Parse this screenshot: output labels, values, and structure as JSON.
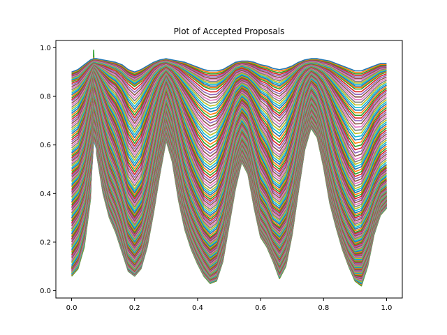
{
  "chart_data": {
    "type": "line",
    "title": "Plot of Accepted Proposals",
    "xlabel": "",
    "ylabel": "",
    "xlim": [
      -0.05,
      1.05
    ],
    "ylim": [
      -0.03,
      1.03
    ],
    "xticks": [
      "0.0",
      "0.2",
      "0.4",
      "0.6",
      "0.8",
      "1.0"
    ],
    "yticks": [
      "0.0",
      "0.2",
      "0.4",
      "0.6",
      "0.8",
      "1.0"
    ],
    "grid": false,
    "legend": "none",
    "x": [
      0.0,
      0.02,
      0.04,
      0.06,
      0.07,
      0.08,
      0.1,
      0.12,
      0.14,
      0.16,
      0.18,
      0.2,
      0.22,
      0.24,
      0.26,
      0.28,
      0.3,
      0.32,
      0.34,
      0.36,
      0.38,
      0.4,
      0.42,
      0.44,
      0.46,
      0.48,
      0.5,
      0.52,
      0.54,
      0.56,
      0.58,
      0.6,
      0.62,
      0.64,
      0.66,
      0.68,
      0.7,
      0.72,
      0.74,
      0.76,
      0.78,
      0.8,
      0.82,
      0.84,
      0.86,
      0.88,
      0.9,
      0.92,
      0.94,
      0.96,
      0.98,
      1.0
    ],
    "series": [
      {
        "values": [
          0.9,
          0.91,
          0.93,
          0.95,
          0.955,
          0.955,
          0.95,
          0.945,
          0.94,
          0.93,
          0.91,
          0.9,
          0.91,
          0.925,
          0.94,
          0.95,
          0.955,
          0.95,
          0.945,
          0.94,
          0.93,
          0.92,
          0.91,
          0.905,
          0.905,
          0.91,
          0.925,
          0.94,
          0.945,
          0.945,
          0.94,
          0.93,
          0.925,
          0.915,
          0.91,
          0.915,
          0.925,
          0.94,
          0.95,
          0.955,
          0.955,
          0.95,
          0.945,
          0.935,
          0.925,
          0.915,
          0.905,
          0.905,
          0.915,
          0.925,
          0.935,
          0.935
        ]
      },
      {
        "values": [
          0.86,
          0.87,
          0.9,
          0.93,
          0.94,
          0.935,
          0.93,
          0.92,
          0.91,
          0.89,
          0.86,
          0.84,
          0.86,
          0.89,
          0.92,
          0.935,
          0.94,
          0.93,
          0.92,
          0.9,
          0.88,
          0.86,
          0.84,
          0.83,
          0.83,
          0.85,
          0.88,
          0.91,
          0.92,
          0.91,
          0.89,
          0.87,
          0.86,
          0.84,
          0.83,
          0.85,
          0.88,
          0.91,
          0.93,
          0.935,
          0.93,
          0.92,
          0.91,
          0.89,
          0.87,
          0.85,
          0.83,
          0.83,
          0.85,
          0.87,
          0.89,
          0.9
        ]
      },
      {
        "values": [
          0.78,
          0.8,
          0.84,
          0.9,
          0.93,
          0.92,
          0.89,
          0.86,
          0.84,
          0.8,
          0.74,
          0.7,
          0.74,
          0.8,
          0.86,
          0.9,
          0.92,
          0.9,
          0.86,
          0.82,
          0.78,
          0.74,
          0.71,
          0.69,
          0.7,
          0.74,
          0.79,
          0.85,
          0.87,
          0.86,
          0.83,
          0.79,
          0.77,
          0.73,
          0.71,
          0.74,
          0.79,
          0.86,
          0.9,
          0.92,
          0.91,
          0.89,
          0.85,
          0.81,
          0.77,
          0.73,
          0.7,
          0.7,
          0.73,
          0.77,
          0.8,
          0.82
        ]
      },
      {
        "values": [
          0.68,
          0.7,
          0.76,
          0.86,
          0.92,
          0.9,
          0.84,
          0.78,
          0.74,
          0.68,
          0.6,
          0.56,
          0.6,
          0.68,
          0.78,
          0.86,
          0.9,
          0.86,
          0.8,
          0.72,
          0.66,
          0.6,
          0.56,
          0.54,
          0.56,
          0.62,
          0.7,
          0.78,
          0.82,
          0.8,
          0.74,
          0.68,
          0.64,
          0.58,
          0.56,
          0.6,
          0.68,
          0.78,
          0.86,
          0.9,
          0.88,
          0.84,
          0.78,
          0.7,
          0.64,
          0.58,
          0.54,
          0.55,
          0.6,
          0.66,
          0.7,
          0.72
        ]
      },
      {
        "values": [
          0.58,
          0.6,
          0.68,
          0.8,
          0.9,
          0.87,
          0.78,
          0.7,
          0.64,
          0.56,
          0.46,
          0.42,
          0.46,
          0.56,
          0.68,
          0.8,
          0.88,
          0.82,
          0.72,
          0.62,
          0.54,
          0.48,
          0.43,
          0.41,
          0.43,
          0.5,
          0.6,
          0.7,
          0.76,
          0.73,
          0.65,
          0.57,
          0.52,
          0.46,
          0.44,
          0.48,
          0.58,
          0.7,
          0.82,
          0.88,
          0.86,
          0.8,
          0.7,
          0.6,
          0.52,
          0.46,
          0.42,
          0.43,
          0.48,
          0.55,
          0.6,
          0.62
        ]
      },
      {
        "values": [
          0.5,
          0.52,
          0.6,
          0.74,
          0.86,
          0.82,
          0.7,
          0.6,
          0.54,
          0.46,
          0.36,
          0.32,
          0.36,
          0.46,
          0.6,
          0.74,
          0.84,
          0.76,
          0.64,
          0.52,
          0.44,
          0.38,
          0.33,
          0.31,
          0.33,
          0.4,
          0.52,
          0.64,
          0.7,
          0.66,
          0.56,
          0.46,
          0.42,
          0.36,
          0.34,
          0.38,
          0.48,
          0.62,
          0.76,
          0.84,
          0.8,
          0.72,
          0.6,
          0.5,
          0.42,
          0.36,
          0.32,
          0.33,
          0.38,
          0.45,
          0.5,
          0.52
        ]
      },
      {
        "values": [
          0.42,
          0.45,
          0.52,
          0.66,
          0.8,
          0.76,
          0.62,
          0.52,
          0.46,
          0.38,
          0.28,
          0.24,
          0.28,
          0.38,
          0.52,
          0.66,
          0.78,
          0.7,
          0.56,
          0.44,
          0.36,
          0.3,
          0.25,
          0.22,
          0.24,
          0.32,
          0.45,
          0.58,
          0.66,
          0.62,
          0.5,
          0.38,
          0.34,
          0.28,
          0.26,
          0.3,
          0.4,
          0.56,
          0.72,
          0.8,
          0.76,
          0.66,
          0.52,
          0.42,
          0.34,
          0.28,
          0.24,
          0.25,
          0.3,
          0.38,
          0.44,
          0.46
        ]
      },
      {
        "values": [
          0.34,
          0.37,
          0.45,
          0.6,
          0.75,
          0.7,
          0.56,
          0.46,
          0.4,
          0.32,
          0.22,
          0.18,
          0.22,
          0.32,
          0.46,
          0.6,
          0.74,
          0.66,
          0.5,
          0.38,
          0.3,
          0.24,
          0.19,
          0.16,
          0.18,
          0.26,
          0.4,
          0.54,
          0.62,
          0.58,
          0.45,
          0.33,
          0.29,
          0.23,
          0.2,
          0.24,
          0.35,
          0.52,
          0.68,
          0.77,
          0.73,
          0.62,
          0.47,
          0.37,
          0.28,
          0.22,
          0.18,
          0.19,
          0.24,
          0.33,
          0.4,
          0.42
        ]
      },
      {
        "values": [
          0.26,
          0.3,
          0.38,
          0.54,
          0.7,
          0.66,
          0.5,
          0.4,
          0.34,
          0.26,
          0.16,
          0.13,
          0.17,
          0.27,
          0.41,
          0.56,
          0.7,
          0.62,
          0.46,
          0.34,
          0.26,
          0.2,
          0.15,
          0.11,
          0.13,
          0.21,
          0.36,
          0.5,
          0.6,
          0.55,
          0.41,
          0.29,
          0.25,
          0.19,
          0.15,
          0.2,
          0.31,
          0.49,
          0.65,
          0.74,
          0.7,
          0.58,
          0.43,
          0.33,
          0.24,
          0.18,
          0.14,
          0.14,
          0.2,
          0.3,
          0.38,
          0.4
        ]
      },
      {
        "values": [
          0.18,
          0.22,
          0.31,
          0.48,
          0.66,
          0.62,
          0.46,
          0.36,
          0.3,
          0.22,
          0.12,
          0.09,
          0.13,
          0.23,
          0.37,
          0.53,
          0.67,
          0.58,
          0.42,
          0.3,
          0.22,
          0.16,
          0.11,
          0.07,
          0.09,
          0.17,
          0.32,
          0.47,
          0.57,
          0.52,
          0.38,
          0.26,
          0.22,
          0.16,
          0.11,
          0.16,
          0.28,
          0.46,
          0.62,
          0.71,
          0.67,
          0.55,
          0.4,
          0.3,
          0.21,
          0.14,
          0.1,
          0.1,
          0.16,
          0.27,
          0.35,
          0.38
        ]
      },
      {
        "values": [
          0.1,
          0.14,
          0.24,
          0.42,
          0.62,
          0.58,
          0.42,
          0.32,
          0.26,
          0.18,
          0.09,
          0.07,
          0.1,
          0.2,
          0.34,
          0.5,
          0.64,
          0.55,
          0.39,
          0.27,
          0.19,
          0.13,
          0.08,
          0.05,
          0.06,
          0.14,
          0.29,
          0.44,
          0.55,
          0.5,
          0.36,
          0.24,
          0.2,
          0.14,
          0.08,
          0.13,
          0.25,
          0.43,
          0.6,
          0.69,
          0.65,
          0.53,
          0.38,
          0.28,
          0.19,
          0.12,
          0.07,
          0.07,
          0.13,
          0.25,
          0.33,
          0.36
        ]
      },
      {
        "values": [
          0.06,
          0.09,
          0.18,
          0.38,
          0.99,
          0.56,
          0.4,
          0.3,
          0.24,
          0.16,
          0.08,
          0.06,
          0.09,
          0.18,
          0.32,
          0.48,
          0.62,
          0.53,
          0.37,
          0.25,
          0.17,
          0.11,
          0.06,
          0.03,
          0.04,
          0.12,
          0.27,
          0.42,
          0.53,
          0.48,
          0.34,
          0.22,
          0.18,
          0.12,
          0.05,
          0.1,
          0.23,
          0.41,
          0.58,
          0.67,
          0.63,
          0.51,
          0.36,
          0.26,
          0.17,
          0.1,
          0.04,
          0.02,
          0.1,
          0.23,
          0.31,
          0.34
        ]
      }
    ]
  }
}
